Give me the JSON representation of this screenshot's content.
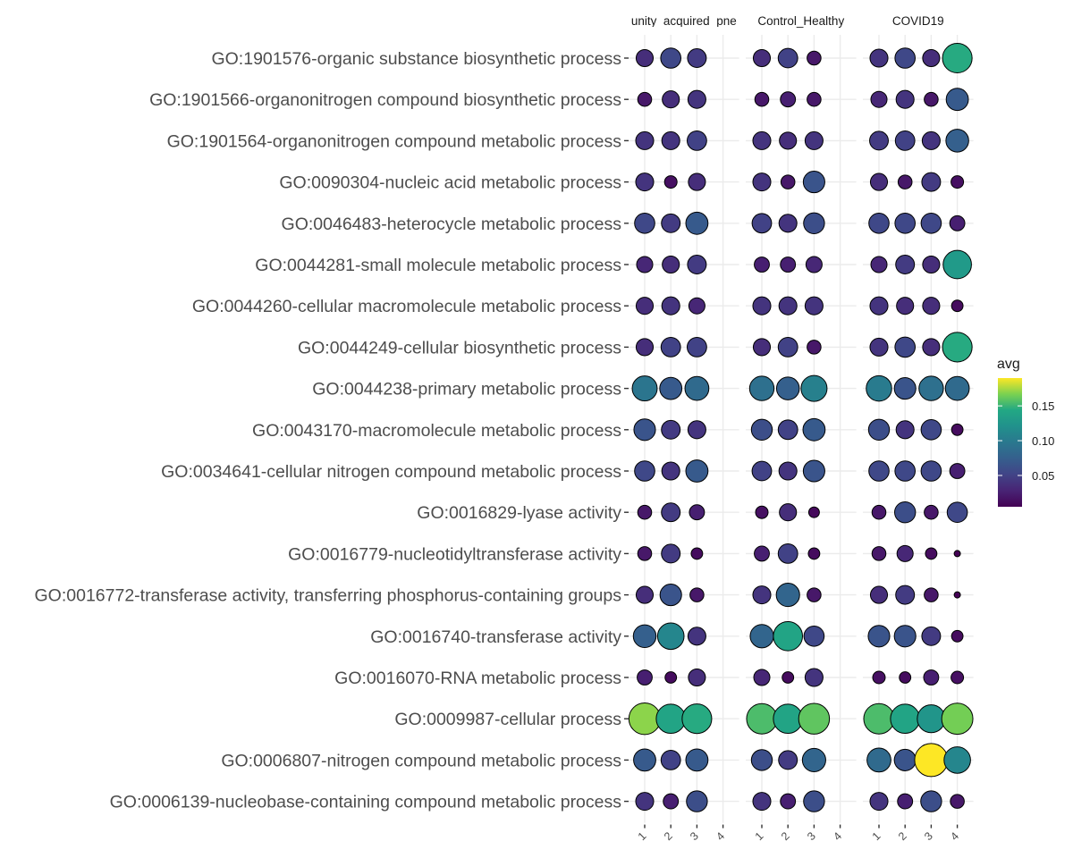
{
  "chart_data": {
    "type": "scatter",
    "chart_kind": "dot-plot",
    "title": "",
    "xlabel": "",
    "ylabel": "",
    "facets": [
      "Community_acquired_pneumonia",
      "Control_Healthy",
      "COVID19"
    ],
    "facet_labels": [
      "unity_acquired_pne",
      "Control_Healthy",
      "COVID19"
    ],
    "x_categories": [
      "1",
      "2",
      "3",
      "4"
    ],
    "y_categories": [
      "GO:1901576-organic substance biosynthetic process",
      "GO:1901566-organonitrogen compound biosynthetic process",
      "GO:1901564-organonitrogen compound metabolic process",
      "GO:0090304-nucleic acid metabolic process",
      "GO:0046483-heterocycle metabolic process",
      "GO:0044281-small molecule metabolic process",
      "GO:0044260-cellular macromolecule metabolic process",
      "GO:0044249-cellular biosynthetic process",
      "GO:0044238-primary metabolic process",
      "GO:0043170-macromolecule metabolic process",
      "GO:0034641-cellular nitrogen compound metabolic process",
      "GO:0016829-lyase activity",
      "GO:0016779-nucleotidyltransferase activity",
      "GO:0016772-transferase activity, transferring phosphorus-containing groups",
      "GO:0016740-transferase activity",
      "GO:0016070-RNA metabolic process",
      "GO:0009987-cellular process",
      "GO:0006807-nitrogen compound metabolic process",
      "GO:0006139-nucleobase-containing compound metabolic process"
    ],
    "color_variable": "avg",
    "size_variable": "avg",
    "color_scale": "viridis",
    "color_range": [
      0.005,
      0.19
    ],
    "legend": {
      "title": "avg",
      "position": "right",
      "ticks": [
        0.05,
        0.1,
        0.15
      ],
      "tick_labels": [
        "0.05",
        "0.10",
        "0.15"
      ]
    },
    "grid": true,
    "values": [
      [
        [
          0.035,
          0.055,
          0.045,
          null
        ],
        [
          0.035,
          0.05,
          0.02,
          null
        ],
        [
          0.04,
          0.055,
          0.035,
          0.145
        ]
      ],
      [
        [
          0.02,
          0.035,
          0.04,
          null
        ],
        [
          0.02,
          0.025,
          0.02,
          null
        ],
        [
          0.03,
          0.04,
          0.02,
          0.07
        ]
      ],
      [
        [
          0.04,
          0.04,
          0.05,
          null
        ],
        [
          0.04,
          0.035,
          0.04,
          null
        ],
        [
          0.045,
          0.05,
          0.04,
          0.075
        ]
      ],
      [
        [
          0.04,
          0.015,
          0.035,
          null
        ],
        [
          0.04,
          0.02,
          0.065,
          null
        ],
        [
          0.035,
          0.02,
          0.045,
          0.015
        ]
      ],
      [
        [
          0.055,
          0.045,
          0.07,
          null
        ],
        [
          0.05,
          0.04,
          0.06,
          null
        ],
        [
          0.055,
          0.055,
          0.055,
          0.025
        ]
      ],
      [
        [
          0.03,
          0.035,
          0.045,
          null
        ],
        [
          0.025,
          0.025,
          0.03,
          null
        ],
        [
          0.03,
          0.045,
          0.035,
          0.13
        ]
      ],
      [
        [
          0.035,
          0.04,
          0.03,
          null
        ],
        [
          0.04,
          0.04,
          0.04,
          null
        ],
        [
          0.04,
          0.035,
          0.035,
          0.012
        ]
      ],
      [
        [
          0.035,
          0.05,
          0.05,
          null
        ],
        [
          0.035,
          0.05,
          0.02,
          null
        ],
        [
          0.04,
          0.055,
          0.035,
          0.145
        ]
      ],
      [
        [
          0.095,
          0.07,
          0.085,
          null
        ],
        [
          0.09,
          0.075,
          0.105,
          null
        ],
        [
          0.1,
          0.065,
          0.09,
          0.085
        ]
      ],
      [
        [
          0.065,
          0.045,
          0.04,
          null
        ],
        [
          0.06,
          0.05,
          0.07,
          null
        ],
        [
          0.06,
          0.04,
          0.055,
          0.012
        ]
      ],
      [
        [
          0.055,
          0.04,
          0.07,
          null
        ],
        [
          0.05,
          0.04,
          0.065,
          null
        ],
        [
          0.055,
          0.055,
          0.055,
          0.025
        ]
      ],
      [
        [
          0.02,
          0.045,
          0.025,
          null
        ],
        [
          0.015,
          0.035,
          0.01,
          null
        ],
        [
          0.02,
          0.06,
          0.02,
          0.055
        ]
      ],
      [
        [
          0.02,
          0.045,
          0.012,
          null
        ],
        [
          0.025,
          0.05,
          0.012,
          null
        ],
        [
          0.02,
          0.03,
          0.012,
          0.005
        ]
      ],
      [
        [
          0.035,
          0.065,
          0.02,
          null
        ],
        [
          0.04,
          0.08,
          0.02,
          null
        ],
        [
          0.035,
          0.045,
          0.02,
          0.005
        ]
      ],
      [
        [
          0.075,
          0.11,
          0.04,
          null
        ],
        [
          0.08,
          0.14,
          0.055,
          null
        ],
        [
          0.065,
          0.065,
          0.045,
          0.012
        ]
      ],
      [
        [
          0.025,
          0.012,
          0.035,
          null
        ],
        [
          0.03,
          0.012,
          0.04,
          null
        ],
        [
          0.015,
          0.012,
          0.025,
          0.015
        ]
      ],
      [
        [
          0.17,
          0.14,
          0.145,
          null
        ],
        [
          0.155,
          0.14,
          0.16,
          null
        ],
        [
          0.155,
          0.14,
          0.125,
          0.165
        ]
      ],
      [
        [
          0.07,
          0.05,
          0.07,
          null
        ],
        [
          0.06,
          0.045,
          0.08,
          null
        ],
        [
          0.085,
          0.065,
          0.19,
          0.11
        ]
      ],
      [
        [
          0.04,
          0.025,
          0.06,
          null
        ],
        [
          0.04,
          0.025,
          0.06,
          null
        ],
        [
          0.04,
          0.025,
          0.06,
          0.02
        ]
      ]
    ]
  }
}
